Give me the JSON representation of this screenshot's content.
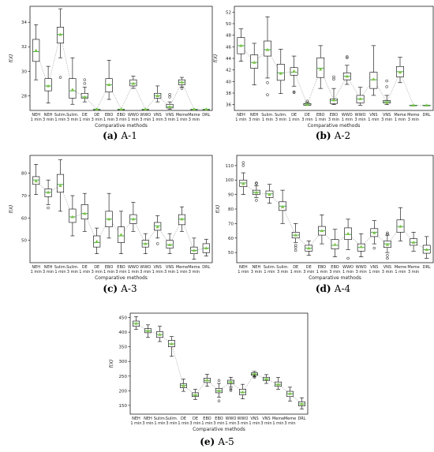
{
  "figure": {
    "x_categories": [
      "NEH 1 min",
      "NEH 3 min",
      "Sulim. 1 min",
      "Sulim. 3 min",
      "DE 1 min",
      "DE 3 min",
      "EBO 1 min",
      "EBO 3 min",
      "WWO 1 min",
      "WWO 3 min",
      "VNS 1 min",
      "VNS 3 min",
      "Meme 1 min",
      "Meme 3 min",
      "DRL"
    ]
  },
  "colors": {
    "box_fill": "#ffffff",
    "box_edge": "#000000",
    "median": "#4aa84a",
    "mean_marker": "#7cc242",
    "trend_line": "#b8b8b8"
  },
  "chart_data": [
    {
      "type": "box",
      "caption_label": "(a)",
      "caption_text": "A-1",
      "ylabel": "f(X)",
      "xlabel": "Comparative methods",
      "ylim": [
        26.8,
        35.3
      ],
      "yticks": [
        28,
        30,
        32,
        34
      ],
      "categories": [
        "NEH 1 min",
        "NEH 3 min",
        "Sulim. 1 min",
        "Sulim. 3 min",
        "DE 1 min",
        "DE 3 min",
        "EBO 1 min",
        "EBO 3 min",
        "WWO 1 min",
        "WWO 3 min",
        "VNS 1 min",
        "VNS 3 min",
        "Meme 1 min",
        "Meme 3 min",
        "DRL"
      ],
      "boxes": [
        {
          "min": 29.3,
          "q1": 30.8,
          "median": 31.6,
          "q3": 32.6,
          "max": 33.8,
          "mean": 31.7,
          "outliers": []
        },
        {
          "min": 27.4,
          "q1": 28.4,
          "median": 28.8,
          "q3": 29.4,
          "max": 30.4,
          "mean": 28.8,
          "outliers": []
        },
        {
          "min": 31.1,
          "q1": 32.3,
          "median": 33.0,
          "q3": 33.6,
          "max": 35.1,
          "mean": 33.0,
          "outliers": [
            29.5
          ]
        },
        {
          "min": 27.3,
          "q1": 27.8,
          "median": 28.4,
          "q3": 29.4,
          "max": 31.1,
          "mean": 28.5,
          "outliers": []
        },
        {
          "min": 27.5,
          "q1": 27.8,
          "median": 27.9,
          "q3": 28.2,
          "max": 28.7,
          "mean": 27.9,
          "outliers": [
            29.0,
            29.3
          ]
        },
        {
          "min": 26.9,
          "q1": 26.9,
          "median": 26.9,
          "q3": 26.9,
          "max": 26.9,
          "mean": 26.9,
          "outliers": []
        },
        {
          "min": 27.7,
          "q1": 28.3,
          "median": 28.9,
          "q3": 29.4,
          "max": 30.9,
          "mean": 28.9,
          "outliers": []
        },
        {
          "min": 26.9,
          "q1": 26.9,
          "median": 26.9,
          "q3": 26.9,
          "max": 26.9,
          "mean": 26.9,
          "outliers": []
        },
        {
          "min": 28.6,
          "q1": 28.8,
          "median": 29.0,
          "q3": 29.3,
          "max": 29.6,
          "mean": 29.0,
          "outliers": []
        },
        {
          "min": 26.9,
          "q1": 26.9,
          "median": 26.9,
          "q3": 26.9,
          "max": 26.9,
          "mean": 26.9,
          "outliers": []
        },
        {
          "min": 27.5,
          "q1": 27.8,
          "median": 28.0,
          "q3": 28.2,
          "max": 28.8,
          "mean": 28.0,
          "outliers": []
        },
        {
          "min": 26.9,
          "q1": 27.0,
          "median": 27.1,
          "q3": 27.3,
          "max": 27.5,
          "mean": 27.1,
          "outliers": [
            27.9,
            28.1
          ]
        },
        {
          "min": 28.7,
          "q1": 28.9,
          "median": 29.1,
          "q3": 29.3,
          "max": 29.5,
          "mean": 29.1,
          "outliers": [
            28.6
          ]
        },
        {
          "min": 26.9,
          "q1": 26.9,
          "median": 26.9,
          "q3": 26.9,
          "max": 26.9,
          "mean": 26.9,
          "outliers": []
        },
        {
          "min": 26.9,
          "q1": 26.9,
          "median": 26.9,
          "q3": 26.9,
          "max": 26.9,
          "mean": 26.9,
          "outliers": []
        }
      ]
    },
    {
      "type": "box",
      "caption_label": "(b)",
      "caption_text": "A-2",
      "ylabel": "f(X)",
      "xlabel": "Comparative methods",
      "ylim": [
        35.0,
        53.0
      ],
      "yticks": [
        36,
        38,
        40,
        42,
        44,
        46,
        48,
        50,
        52
      ],
      "categories": [
        "NEH 1 min",
        "NEH 3 min",
        "Sulim. 1 min",
        "Sulim. 3 min",
        "DE 1 min",
        "DE 3 min",
        "EBO 1 min",
        "EBO 3 min",
        "WWO 1 min",
        "WWO 3 min",
        "VNS 1 min",
        "VNS 3 min",
        "Meme 1 min",
        "Meme 3 min",
        "DRL"
      ],
      "boxes": [
        {
          "min": 43.5,
          "q1": 44.8,
          "median": 46.2,
          "q3": 47.6,
          "max": 49.1,
          "mean": 46.2,
          "outliers": []
        },
        {
          "min": 39.4,
          "q1": 42.3,
          "median": 43.3,
          "q3": 44.6,
          "max": 46.6,
          "mean": 43.3,
          "outliers": []
        },
        {
          "min": 40.6,
          "q1": 44.4,
          "median": 45.5,
          "q3": 47.0,
          "max": 51.2,
          "mean": 45.5,
          "outliers": [
            37.7,
            39.8
          ]
        },
        {
          "min": 37.9,
          "q1": 40.2,
          "median": 41.5,
          "q3": 43.0,
          "max": 45.6,
          "mean": 41.4,
          "outliers": []
        },
        {
          "min": 39.2,
          "q1": 41.1,
          "median": 41.6,
          "q3": 42.4,
          "max": 44.4,
          "mean": 41.8,
          "outliers": [
            38.1,
            38.2
          ]
        },
        {
          "min": 35.9,
          "q1": 35.9,
          "median": 36.1,
          "q3": 36.2,
          "max": 36.4,
          "mean": 36.0,
          "outliers": [
            36.6
          ]
        },
        {
          "min": 38.8,
          "q1": 40.7,
          "median": 42.3,
          "q3": 44.1,
          "max": 46.2,
          "mean": 42.1,
          "outliers": []
        },
        {
          "min": 36.0,
          "q1": 36.2,
          "median": 36.7,
          "q3": 37.0,
          "max": 38.8,
          "mean": 36.8,
          "outliers": [
            40.4,
            40.8
          ]
        },
        {
          "min": 39.5,
          "q1": 40.3,
          "median": 40.9,
          "q3": 41.5,
          "max": 42.8,
          "mean": 40.9,
          "outliers": [
            44.1,
            44.3
          ]
        },
        {
          "min": 35.9,
          "q1": 36.3,
          "median": 37.0,
          "q3": 37.6,
          "max": 39.0,
          "mean": 37.0,
          "outliers": []
        },
        {
          "min": 37.6,
          "q1": 38.8,
          "median": 40.3,
          "q3": 41.6,
          "max": 46.2,
          "mean": 40.4,
          "outliers": []
        },
        {
          "min": 36.0,
          "q1": 36.3,
          "median": 36.5,
          "q3": 36.7,
          "max": 37.6,
          "mean": 36.4,
          "outliers": [
            39.1,
            40.1
          ]
        },
        {
          "min": 39.8,
          "q1": 40.8,
          "median": 41.7,
          "q3": 42.6,
          "max": 44.2,
          "mean": 41.6,
          "outliers": []
        },
        {
          "min": 35.9,
          "q1": 35.9,
          "median": 35.9,
          "q3": 35.9,
          "max": 35.9,
          "mean": 35.9,
          "outliers": []
        },
        {
          "min": 35.9,
          "q1": 35.9,
          "median": 35.9,
          "q3": 35.9,
          "max": 35.9,
          "mean": 35.9,
          "outliers": []
        }
      ]
    },
    {
      "type": "box",
      "caption_label": "(c)",
      "caption_text": "A-3",
      "ylabel": "f(X)",
      "xlabel": "Comparative methods",
      "ylim": [
        40,
        88
      ],
      "yticks": [
        50,
        60,
        70,
        80
      ],
      "categories": [
        "NEH 1 min",
        "NEH 3 min",
        "Sulim. 1 min",
        "Sulim. 3 min",
        "DE 1 min",
        "DE 3 min",
        "EBO 1 min",
        "EBO 3 min",
        "WWO 1 min",
        "WWO 3 min",
        "VNS 1 min",
        "VNS 3 min",
        "Meme 1 min",
        "Meme 3 min",
        "DRL"
      ],
      "boxes": [
        {
          "min": 70.5,
          "q1": 75.0,
          "median": 77.0,
          "q3": 78.5,
          "max": 84.0,
          "mean": 76.5,
          "outliers": []
        },
        {
          "min": 66.0,
          "q1": 69.5,
          "median": 71.5,
          "q3": 73.0,
          "max": 77.0,
          "mean": 71.5,
          "outliers": [
            64.5
          ]
        },
        {
          "min": 63.0,
          "q1": 71.5,
          "median": 75.0,
          "q3": 79.5,
          "max": 86.0,
          "mean": 74.5,
          "outliers": []
        },
        {
          "min": 52.0,
          "q1": 58.0,
          "median": 60.5,
          "q3": 64.0,
          "max": 70.0,
          "mean": 60.5,
          "outliers": []
        },
        {
          "min": 54.0,
          "q1": 59.5,
          "median": 62.0,
          "q3": 66.0,
          "max": 71.0,
          "mean": 62.0,
          "outliers": []
        },
        {
          "min": 44.0,
          "q1": 47.0,
          "median": 49.0,
          "q3": 52.0,
          "max": 55.5,
          "mean": 49.5,
          "outliers": []
        },
        {
          "min": 51.0,
          "q1": 56.0,
          "median": 59.5,
          "q3": 63.0,
          "max": 71.0,
          "mean": 59.5,
          "outliers": []
        },
        {
          "min": 44.0,
          "q1": 49.0,
          "median": 52.0,
          "q3": 56.0,
          "max": 63.0,
          "mean": 52.5,
          "outliers": []
        },
        {
          "min": 54.0,
          "q1": 57.5,
          "median": 59.5,
          "q3": 61.5,
          "max": 67.0,
          "mean": 59.5,
          "outliers": []
        },
        {
          "min": 44.0,
          "q1": 47.0,
          "median": 48.5,
          "q3": 50.0,
          "max": 53.0,
          "mean": 48.5,
          "outliers": []
        },
        {
          "min": 51.0,
          "q1": 54.5,
          "median": 56.5,
          "q3": 58.0,
          "max": 61.0,
          "mean": 56.0,
          "outliers": [
            48.5
          ]
        },
        {
          "min": 44.0,
          "q1": 46.5,
          "median": 48.0,
          "q3": 50.0,
          "max": 53.0,
          "mean": 48.0,
          "outliers": []
        },
        {
          "min": 54.0,
          "q1": 57.0,
          "median": 59.5,
          "q3": 61.5,
          "max": 65.0,
          "mean": 59.5,
          "outliers": []
        },
        {
          "min": 41.5,
          "q1": 44.0,
          "median": 45.5,
          "q3": 47.0,
          "max": 51.0,
          "mean": 45.5,
          "outliers": []
        },
        {
          "min": 43.0,
          "q1": 44.5,
          "median": 46.5,
          "q3": 48.5,
          "max": 50.5,
          "mean": 46.5,
          "outliers": []
        }
      ]
    },
    {
      "type": "box",
      "caption_label": "(d)",
      "caption_text": "A-4",
      "ylabel": "f(X)",
      "xlabel": "Comparative methods",
      "ylim": [
        43,
        117
      ],
      "yticks": [
        50,
        60,
        70,
        80,
        90,
        100,
        110
      ],
      "categories": [
        "NEH 1 min",
        "NEH 3 min",
        "Sulim. 1 min",
        "Sulim. 3 min",
        "DE 1 min",
        "DE 3 min",
        "EBO 1 min",
        "EBO 3 min",
        "WWO 1 min",
        "WWO 3 min",
        "VNS 1 min",
        "VNS 3 min",
        "Meme 1 min",
        "Meme 3 min",
        "DRL"
      ],
      "boxes": [
        {
          "min": 90.0,
          "q1": 95.5,
          "median": 98.0,
          "q3": 100.0,
          "max": 105.0,
          "mean": 97.5,
          "outliers": [
            110.0,
            112.0
          ]
        },
        {
          "min": 88.0,
          "q1": 90.0,
          "median": 91.5,
          "q3": 93.0,
          "max": 96.0,
          "mean": 91.5,
          "outliers": [
            86.0,
            97.5,
            98.0
          ]
        },
        {
          "min": 84.0,
          "q1": 88.0,
          "median": 90.5,
          "q3": 92.5,
          "max": 97.0,
          "mean": 90.0,
          "outliers": []
        },
        {
          "min": 70.0,
          "q1": 79.0,
          "median": 82.0,
          "q3": 85.0,
          "max": 93.0,
          "mean": 81.5,
          "outliers": []
        },
        {
          "min": 57.0,
          "q1": 60.0,
          "median": 62.0,
          "q3": 64.0,
          "max": 70.0,
          "mean": 62.0,
          "outliers": [
            51.5,
            53.5,
            55.0
          ]
        },
        {
          "min": 48.0,
          "q1": 51.0,
          "median": 53.0,
          "q3": 55.0,
          "max": 58.0,
          "mean": 53.0,
          "outliers": []
        },
        {
          "min": 56.0,
          "q1": 62.0,
          "median": 65.0,
          "q3": 68.0,
          "max": 76.0,
          "mean": 65.0,
          "outliers": []
        },
        {
          "min": 47.0,
          "q1": 52.5,
          "median": 55.0,
          "q3": 59.0,
          "max": 66.0,
          "mean": 55.5,
          "outliers": []
        },
        {
          "min": 52.0,
          "q1": 59.0,
          "median": 62.5,
          "q3": 67.0,
          "max": 73.0,
          "mean": 63.0,
          "outliers": [
            46.0
          ]
        },
        {
          "min": 47.0,
          "q1": 51.0,
          "median": 53.5,
          "q3": 56.0,
          "max": 63.0,
          "mean": 54.0,
          "outliers": []
        },
        {
          "min": 56.0,
          "q1": 61.0,
          "median": 64.0,
          "q3": 66.5,
          "max": 72.0,
          "mean": 63.5,
          "outliers": [
            53.0
          ]
        },
        {
          "min": 50.0,
          "q1": 53.5,
          "median": 56.0,
          "q3": 58.0,
          "max": 62.0,
          "mean": 55.5,
          "outliers": [
            46.0,
            48.0,
            62.5,
            63.5
          ]
        },
        {
          "min": 58.0,
          "q1": 64.0,
          "median": 68.0,
          "q3": 72.5,
          "max": 81.0,
          "mean": 68.0,
          "outliers": []
        },
        {
          "min": 51.0,
          "q1": 55.0,
          "median": 57.0,
          "q3": 59.5,
          "max": 64.0,
          "mean": 57.0,
          "outliers": []
        },
        {
          "min": 46.0,
          "q1": 49.5,
          "median": 52.0,
          "q3": 55.0,
          "max": 61.0,
          "mean": 52.0,
          "outliers": []
        }
      ]
    },
    {
      "type": "box",
      "caption_label": "(e)",
      "caption_text": "A-5",
      "ylabel": "f(X)",
      "xlabel": "Comparative methods",
      "ylim": [
        120,
        465
      ],
      "yticks": [
        150,
        200,
        250,
        300,
        350,
        400,
        450
      ],
      "categories": [
        "NEH 1 min",
        "NEH 3 min",
        "Sulim. 1 min",
        "Sulim. 3 min",
        "DE 1 min",
        "DE 3 min",
        "EBO 1 min",
        "EBO 3 min",
        "WWO 1 min",
        "WWO 3 min",
        "VNS 1 min",
        "VNS 3 min",
        "Meme 1 min",
        "Meme 3 min",
        "DRL"
      ],
      "boxes": [
        {
          "min": 410,
          "q1": 420,
          "median": 430,
          "q3": 438,
          "max": 453,
          "mean": 430,
          "outliers": []
        },
        {
          "min": 382,
          "q1": 398,
          "median": 405,
          "q3": 412,
          "max": 425,
          "mean": 405,
          "outliers": []
        },
        {
          "min": 368,
          "q1": 382,
          "median": 392,
          "q3": 402,
          "max": 420,
          "mean": 392,
          "outliers": []
        },
        {
          "min": 318,
          "q1": 350,
          "median": 360,
          "q3": 372,
          "max": 385,
          "mean": 360,
          "outliers": []
        },
        {
          "min": 198,
          "q1": 210,
          "median": 218,
          "q3": 224,
          "max": 240,
          "mean": 217,
          "outliers": []
        },
        {
          "min": 170,
          "q1": 180,
          "median": 185,
          "q3": 193,
          "max": 205,
          "mean": 186,
          "outliers": []
        },
        {
          "min": 215,
          "q1": 228,
          "median": 235,
          "q3": 243,
          "max": 256,
          "mean": 236,
          "outliers": []
        },
        {
          "min": 178,
          "q1": 193,
          "median": 200,
          "q3": 208,
          "max": 225,
          "mean": 200,
          "outliers": [
            165,
            235
          ]
        },
        {
          "min": 212,
          "q1": 224,
          "median": 230,
          "q3": 236,
          "max": 246,
          "mean": 230,
          "outliers": [
            201,
            205
          ]
        },
        {
          "min": 172,
          "q1": 186,
          "median": 195,
          "q3": 205,
          "max": 222,
          "mean": 195,
          "outliers": []
        },
        {
          "min": 248,
          "q1": 253,
          "median": 257,
          "q3": 261,
          "max": 266,
          "mean": 257,
          "outliers": [
            246,
            250
          ]
        },
        {
          "min": 225,
          "q1": 235,
          "median": 240,
          "q3": 246,
          "max": 255,
          "mean": 240,
          "outliers": []
        },
        {
          "min": 205,
          "q1": 215,
          "median": 222,
          "q3": 230,
          "max": 245,
          "mean": 222,
          "outliers": []
        },
        {
          "min": 165,
          "q1": 180,
          "median": 190,
          "q3": 198,
          "max": 212,
          "mean": 190,
          "outliers": []
        },
        {
          "min": 138,
          "q1": 148,
          "median": 155,
          "q3": 162,
          "max": 176,
          "mean": 155,
          "outliers": []
        }
      ]
    }
  ]
}
